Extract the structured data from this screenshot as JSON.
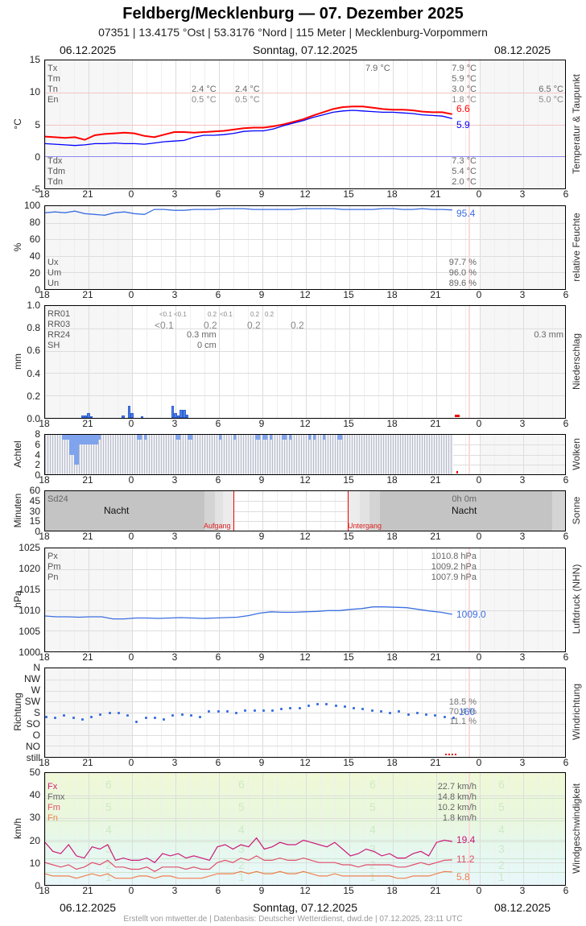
{
  "header": {
    "title": "Feldberg/Mecklenburg  —  07. Dezember 2025",
    "subtitle": "07351  |  13.4175 °Ost  |  53.3176 °Nord  |  115 Meter  |  Mecklenburg-Vorpommern",
    "date_left": "06.12.2025",
    "date_center": "Sonntag, 07.12.2025",
    "date_right": "08.12.2025"
  },
  "x_ticks": [
    "18",
    "21",
    "0",
    "3",
    "6",
    "9",
    "12",
    "15",
    "18",
    "21",
    "0",
    "3",
    "6"
  ],
  "footer": "Erstellt von mtwetter.de | Datenbasis: Deutscher Wetterdienst, dwd.de | 07.12.2025, 23:11 UTC",
  "chart_data": [
    {
      "type": "line",
      "title": "Temperatur & Taupunkt",
      "ylabel": "°C",
      "ylim": [
        -5,
        15
      ],
      "yticks": [
        "15",
        "10",
        "5",
        "0",
        "-5"
      ],
      "stats_labels": [
        "Tx",
        "Tm",
        "Tn",
        "En"
      ],
      "dew_labels": [
        "Tdx",
        "Tdm",
        "Tdn"
      ],
      "prev_day_stats": {
        "Tn": "2.4 °C",
        "En": "0.5 °C"
      },
      "prev_day_stats2": {
        "Tn": "2.4 °C",
        "En": "0.5 °C"
      },
      "tx_marker": "7.9 °C",
      "day_stats": {
        "Tx": "7.9 °C",
        "Tm": "5.9 °C",
        "Tn": "3.0 °C",
        "En": "1.8 °C"
      },
      "next_day_stats": {
        "Tn": "6.5 °C",
        "En": "5.0 °C"
      },
      "dew_stats": {
        "Tdx": "7.3 °C",
        "Tdm": "5.4 °C",
        "Tdn": "2.0 °C"
      },
      "series": [
        {
          "name": "Temperatur",
          "color": "#ff0000",
          "last": "6.6",
          "values": [
            3.1,
            3.0,
            2.9,
            3.0,
            2.6,
            3.3,
            3.5,
            3.6,
            3.7,
            3.6,
            3.2,
            3.0,
            3.4,
            3.8,
            3.8,
            3.7,
            3.8,
            3.9,
            4.0,
            4.2,
            4.4,
            4.5,
            4.5,
            4.7,
            5.0,
            5.4,
            5.8,
            6.4,
            6.9,
            7.4,
            7.7,
            7.8,
            7.8,
            7.6,
            7.4,
            7.3,
            7.3,
            7.2,
            7.0,
            6.9,
            6.9,
            6.6
          ]
        },
        {
          "name": "Taupunkt",
          "color": "#0000ff",
          "last": "5.9",
          "values": [
            2.0,
            1.9,
            1.8,
            1.7,
            1.8,
            2.0,
            2.0,
            2.1,
            2.0,
            2.0,
            1.9,
            2.1,
            2.3,
            2.4,
            2.5,
            3.0,
            3.3,
            3.3,
            3.4,
            3.6,
            3.9,
            4.0,
            4.0,
            4.3,
            4.8,
            5.2,
            5.6,
            6.1,
            6.5,
            6.9,
            7.1,
            7.2,
            7.1,
            7.0,
            6.9,
            6.9,
            6.8,
            6.7,
            6.5,
            6.4,
            6.3,
            5.9
          ]
        }
      ]
    },
    {
      "type": "line",
      "title": "relative Feuchte",
      "ylabel": "%",
      "ylim": [
        0,
        100
      ],
      "yticks": [
        "100",
        "80",
        "60",
        "40",
        "20",
        "0"
      ],
      "stats_labels": [
        "Ux",
        "Um",
        "Un"
      ],
      "day_stats": {
        "Ux": "97.7 %",
        "Um": "96.0 %",
        "Un": "89.6 %"
      },
      "series": [
        {
          "name": "Feuchte",
          "color": "#3b6fe0",
          "last": "95.4",
          "values": [
            92,
            93,
            92,
            94,
            91,
            90,
            89,
            92,
            93,
            91,
            90,
            96,
            96,
            95,
            95,
            96,
            96,
            96,
            97,
            97,
            97,
            96,
            96,
            96,
            96,
            96,
            97,
            97,
            97,
            97,
            96,
            96,
            96,
            96,
            97,
            97,
            96,
            96,
            97,
            96,
            96,
            95.4
          ]
        }
      ]
    },
    {
      "type": "bar",
      "title": "Niederschlag",
      "ylabel": "mm",
      "ylim": [
        0,
        1.0
      ],
      "yticks": [
        "1.0",
        "0.8",
        "0.6",
        "0.4",
        "0.2",
        "0.0"
      ],
      "stats_labels": [
        "RR01",
        "RR03",
        "RR24",
        "SH"
      ],
      "rr01_labels": [
        "<0.1",
        "<0.1",
        "0.2",
        "<0.1",
        "0.2",
        "0.2"
      ],
      "rr03_labels": [
        "<0.1",
        "0.2",
        "0.2",
        "0.2"
      ],
      "rr24": "0.3 mm",
      "sh": "0 cm",
      "rr24_next": "0.3 mm",
      "bars": [
        {
          "t": 2.5,
          "v": 0.02
        },
        {
          "t": 2.7,
          "v": 0.02
        },
        {
          "t": 2.9,
          "v": 0.04
        },
        {
          "t": 3.1,
          "v": 0.01
        },
        {
          "t": 5.3,
          "v": 0.02
        },
        {
          "t": 5.7,
          "v": 0.11
        },
        {
          "t": 5.9,
          "v": 0.04
        },
        {
          "t": 6.6,
          "v": 0.01
        },
        {
          "t": 8.7,
          "v": 0.11
        },
        {
          "t": 8.9,
          "v": 0.04
        },
        {
          "t": 9.1,
          "v": 0.02
        },
        {
          "t": 9.3,
          "v": 0.07
        },
        {
          "t": 9.5,
          "v": 0.07
        },
        {
          "t": 9.7,
          "v": 0.03
        }
      ]
    },
    {
      "type": "bar",
      "title": "Wolken",
      "ylabel": "Achtel",
      "ylim": [
        0,
        8
      ],
      "yticks": [
        "8",
        "6",
        "4",
        "2",
        "0"
      ],
      "series": [
        {
          "name": "Bedeckung",
          "values": "mostly 8/8, dips to 2-6 around 19-21h"
        }
      ]
    },
    {
      "type": "area",
      "title": "Sonne",
      "ylabel": "Minuten",
      "ylim": [
        0,
        60
      ],
      "yticks": [
        "60",
        "45",
        "30",
        "15",
        "0"
      ],
      "sd24_label": "Sd24",
      "sd24_value": "0h 0m",
      "night_label": "Nacht",
      "sunrise_label": "Aufgang",
      "sunset_label": "Untergang",
      "sunrise_hour": 7.0,
      "sunset_hour": 14.9
    },
    {
      "type": "line",
      "title": "Luftdruck (NHN)",
      "ylabel": "hPa",
      "ylim": [
        1000,
        1025
      ],
      "yticks": [
        "1025",
        "1020",
        "1015",
        "1010",
        "1005",
        "1000"
      ],
      "stats_labels": [
        "Px",
        "Pm",
        "Pn"
      ],
      "day_stats": {
        "Px": "1010.8 hPa",
        "Pm": "1009.2 hPa",
        "Pn": "1007.9 hPa"
      },
      "series": [
        {
          "name": "Luftdruck",
          "color": "#3b6fe0",
          "last": "1009.0",
          "values": [
            1008.6,
            1008.4,
            1008.4,
            1008.3,
            1008.4,
            1008.4,
            1007.9,
            1007.9,
            1008.1,
            1008.1,
            1008.0,
            1008.1,
            1008.2,
            1008.1,
            1008.0,
            1008.1,
            1008.2,
            1008.3,
            1008.7,
            1009.3,
            1009.6,
            1009.5,
            1009.5,
            1009.6,
            1009.7,
            1009.9,
            1009.9,
            1010.2,
            1010.4,
            1010.8,
            1010.8,
            1010.7,
            1010.6,
            1010.2,
            1009.8,
            1009.5,
            1009.0
          ]
        }
      ]
    },
    {
      "type": "scatter",
      "title": "Windrichtung",
      "ylabel": "Richtung",
      "categories": [
        "N",
        "NW",
        "W",
        "SW",
        "S",
        "SO",
        "O",
        "NO",
        "still"
      ],
      "stats": [
        "18.5 %",
        "70.4 %",
        "11.1 %"
      ],
      "last": "160",
      "series": [
        {
          "name": "Richtung (deg)",
          "color": "#3b6fe0",
          "values": [
            165,
            160,
            170,
            160,
            155,
            165,
            175,
            180,
            180,
            170,
            145,
            160,
            160,
            155,
            170,
            175,
            170,
            165,
            185,
            185,
            185,
            180,
            190,
            190,
            190,
            190,
            195,
            200,
            200,
            210,
            215,
            215,
            210,
            205,
            200,
            195,
            190,
            185,
            180,
            185,
            175,
            180,
            175,
            170,
            165,
            160
          ]
        }
      ]
    },
    {
      "type": "line",
      "title": "Windgeschwindigkeit",
      "ylabel": "km/h",
      "ylim": [
        0,
        50
      ],
      "yticks": [
        "50",
        "40",
        "30",
        "20",
        "10",
        "0"
      ],
      "stats_labels": [
        "Fx",
        "Fmx",
        "Fm",
        "Fn"
      ],
      "day_stats": {
        "Fx": "22.7 km/h",
        "Fmx": "14.8 km/h",
        "Fm": "10.2 km/h",
        "Fn": "1.8 km/h"
      },
      "beaufort": [
        "6",
        "5",
        "4",
        "3",
        "2",
        "1"
      ],
      "series": [
        {
          "name": "Fx",
          "color": "#cc1a7a",
          "last": "19.4",
          "values": [
            19,
            15,
            14,
            18,
            13,
            12,
            17,
            16,
            18,
            11,
            12,
            11,
            11,
            12,
            10,
            14,
            13,
            14,
            12,
            13,
            12,
            11,
            17,
            18,
            16,
            18,
            17,
            21,
            16,
            17,
            19,
            18,
            18,
            20,
            19,
            18,
            17,
            19,
            16,
            13,
            14,
            16,
            15,
            13,
            14,
            12,
            12,
            14,
            15,
            13,
            19,
            20,
            19.4
          ]
        },
        {
          "name": "Fm",
          "color": "#e0506a",
          "last": "11.2",
          "values": [
            10,
            9,
            8,
            9,
            7,
            8,
            10,
            9,
            11,
            8,
            8,
            7,
            7,
            8,
            6,
            8,
            8,
            8,
            7,
            8,
            7,
            7,
            10,
            11,
            10,
            12,
            11,
            13,
            11,
            11,
            12,
            11,
            11,
            12,
            11,
            10,
            10,
            10,
            9,
            9,
            8,
            9,
            9,
            9,
            9,
            8,
            8,
            9,
            10,
            9,
            10,
            11,
            11.2
          ]
        },
        {
          "name": "Fn",
          "color": "#f08050",
          "last": "5.8",
          "values": [
            5,
            4,
            4,
            4,
            3,
            4,
            5,
            4,
            5,
            3,
            3,
            3,
            4,
            4,
            3,
            4,
            4,
            3,
            3,
            3,
            3,
            4,
            5,
            5,
            5,
            6,
            5,
            6,
            5,
            5,
            6,
            5,
            5,
            6,
            5,
            4,
            4,
            5,
            4,
            4,
            4,
            4,
            4,
            4,
            4,
            3,
            3,
            4,
            4,
            4,
            5,
            6,
            5.8
          ]
        }
      ]
    }
  ]
}
